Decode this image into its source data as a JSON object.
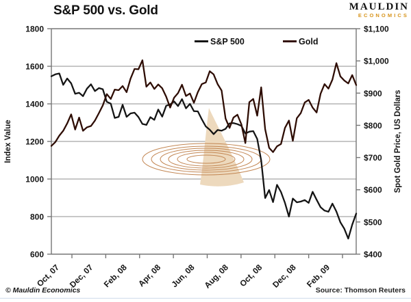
{
  "title": "S&P 500 vs. Gold",
  "logo": {
    "line1": "MAULDIN",
    "line2": "ECONOMICS",
    "accent_color": "#d7941c"
  },
  "legend": {
    "items": [
      {
        "label": "S&P 500",
        "color": "#141414"
      },
      {
        "label": "Gold",
        "color": "#33100a"
      }
    ]
  },
  "footer": {
    "copyright": "© Mauldin Economics",
    "source": "Source: Thomson Reuters"
  },
  "watermark": {
    "name": "shark-fin-with-ripples",
    "fin_color": "#edd9bd",
    "ripple_color": "#c28551"
  },
  "chart_data": {
    "type": "line",
    "title": "S&P 500 vs. Gold",
    "grid": "horizontal",
    "legend_position": "top-inside",
    "x_tick_labels": [
      "Oct, 07",
      "Dec, 07",
      "Feb, 08",
      "Apr, 08",
      "Jun, 08",
      "Aug, 08",
      "Oct, 08",
      "Dec, 08",
      "Feb, 09"
    ],
    "x_range": "Oct 2007 to Mar 2009, weekly points",
    "left_axis": {
      "label": "Index Value",
      "min": 600,
      "max": 1800,
      "tick_step": 200,
      "tick_labels": [
        "1800",
        "1600",
        "1400",
        "1200",
        "1000",
        "800",
        "600"
      ]
    },
    "right_axis": {
      "label": "Spot Gold Price, US Dollars",
      "min": 400,
      "max": 1100,
      "tick_step": 100,
      "tick_labels": [
        "$1,100",
        "$1,000",
        "$900",
        "$800",
        "$700",
        "$600",
        "$500",
        "$400"
      ]
    },
    "series": [
      {
        "name": "S&P 500",
        "axis": "left",
        "color": "#141414",
        "values": [
          1547,
          1557,
          1562,
          1501,
          1535,
          1509,
          1454,
          1459,
          1441,
          1481,
          1504,
          1468,
          1484,
          1478,
          1411,
          1401,
          1325,
          1331,
          1395,
          1331,
          1349,
          1353,
          1330,
          1293,
          1288,
          1329,
          1315,
          1370,
          1332,
          1390,
          1397,
          1413,
          1388,
          1425,
          1376,
          1400,
          1361,
          1360,
          1318,
          1280,
          1262,
          1239,
          1261,
          1257,
          1267,
          1296,
          1298,
          1292,
          1283,
          1242,
          1252,
          1255,
          1213,
          1099,
          899,
          941,
          877,
          969,
          931,
          873,
          800,
          896,
          876,
          880,
          888,
          873,
          932,
          890,
          850,
          832,
          826,
          869,
          827,
          770,
          735,
          683,
          757,
          816
        ]
      },
      {
        "name": "Gold",
        "axis": "right",
        "color": "#2e0d04",
        "values": [
          736,
          748,
          768,
          783,
          806,
          834,
          787,
          824,
          783,
          794,
          798,
          815,
          838,
          862,
          897,
          882,
          911,
          909,
          922,
          903,
          945,
          975,
          974,
          1002,
          920,
          933,
          913,
          927,
          915,
          889,
          855,
          886,
          900,
          926,
          891,
          899,
          870,
          903,
          928,
          933,
          968,
          958,
          928,
          908,
          821,
          792,
          824,
          833,
          803,
          745,
          872,
          882,
          830,
          918,
          788,
          730,
          717,
          735,
          742,
          792,
          815,
          752,
          822,
          838,
          871,
          879,
          855,
          840,
          898,
          928,
          914,
          942,
          993,
          952,
          939,
          930,
          956,
          925
        ]
      }
    ]
  }
}
